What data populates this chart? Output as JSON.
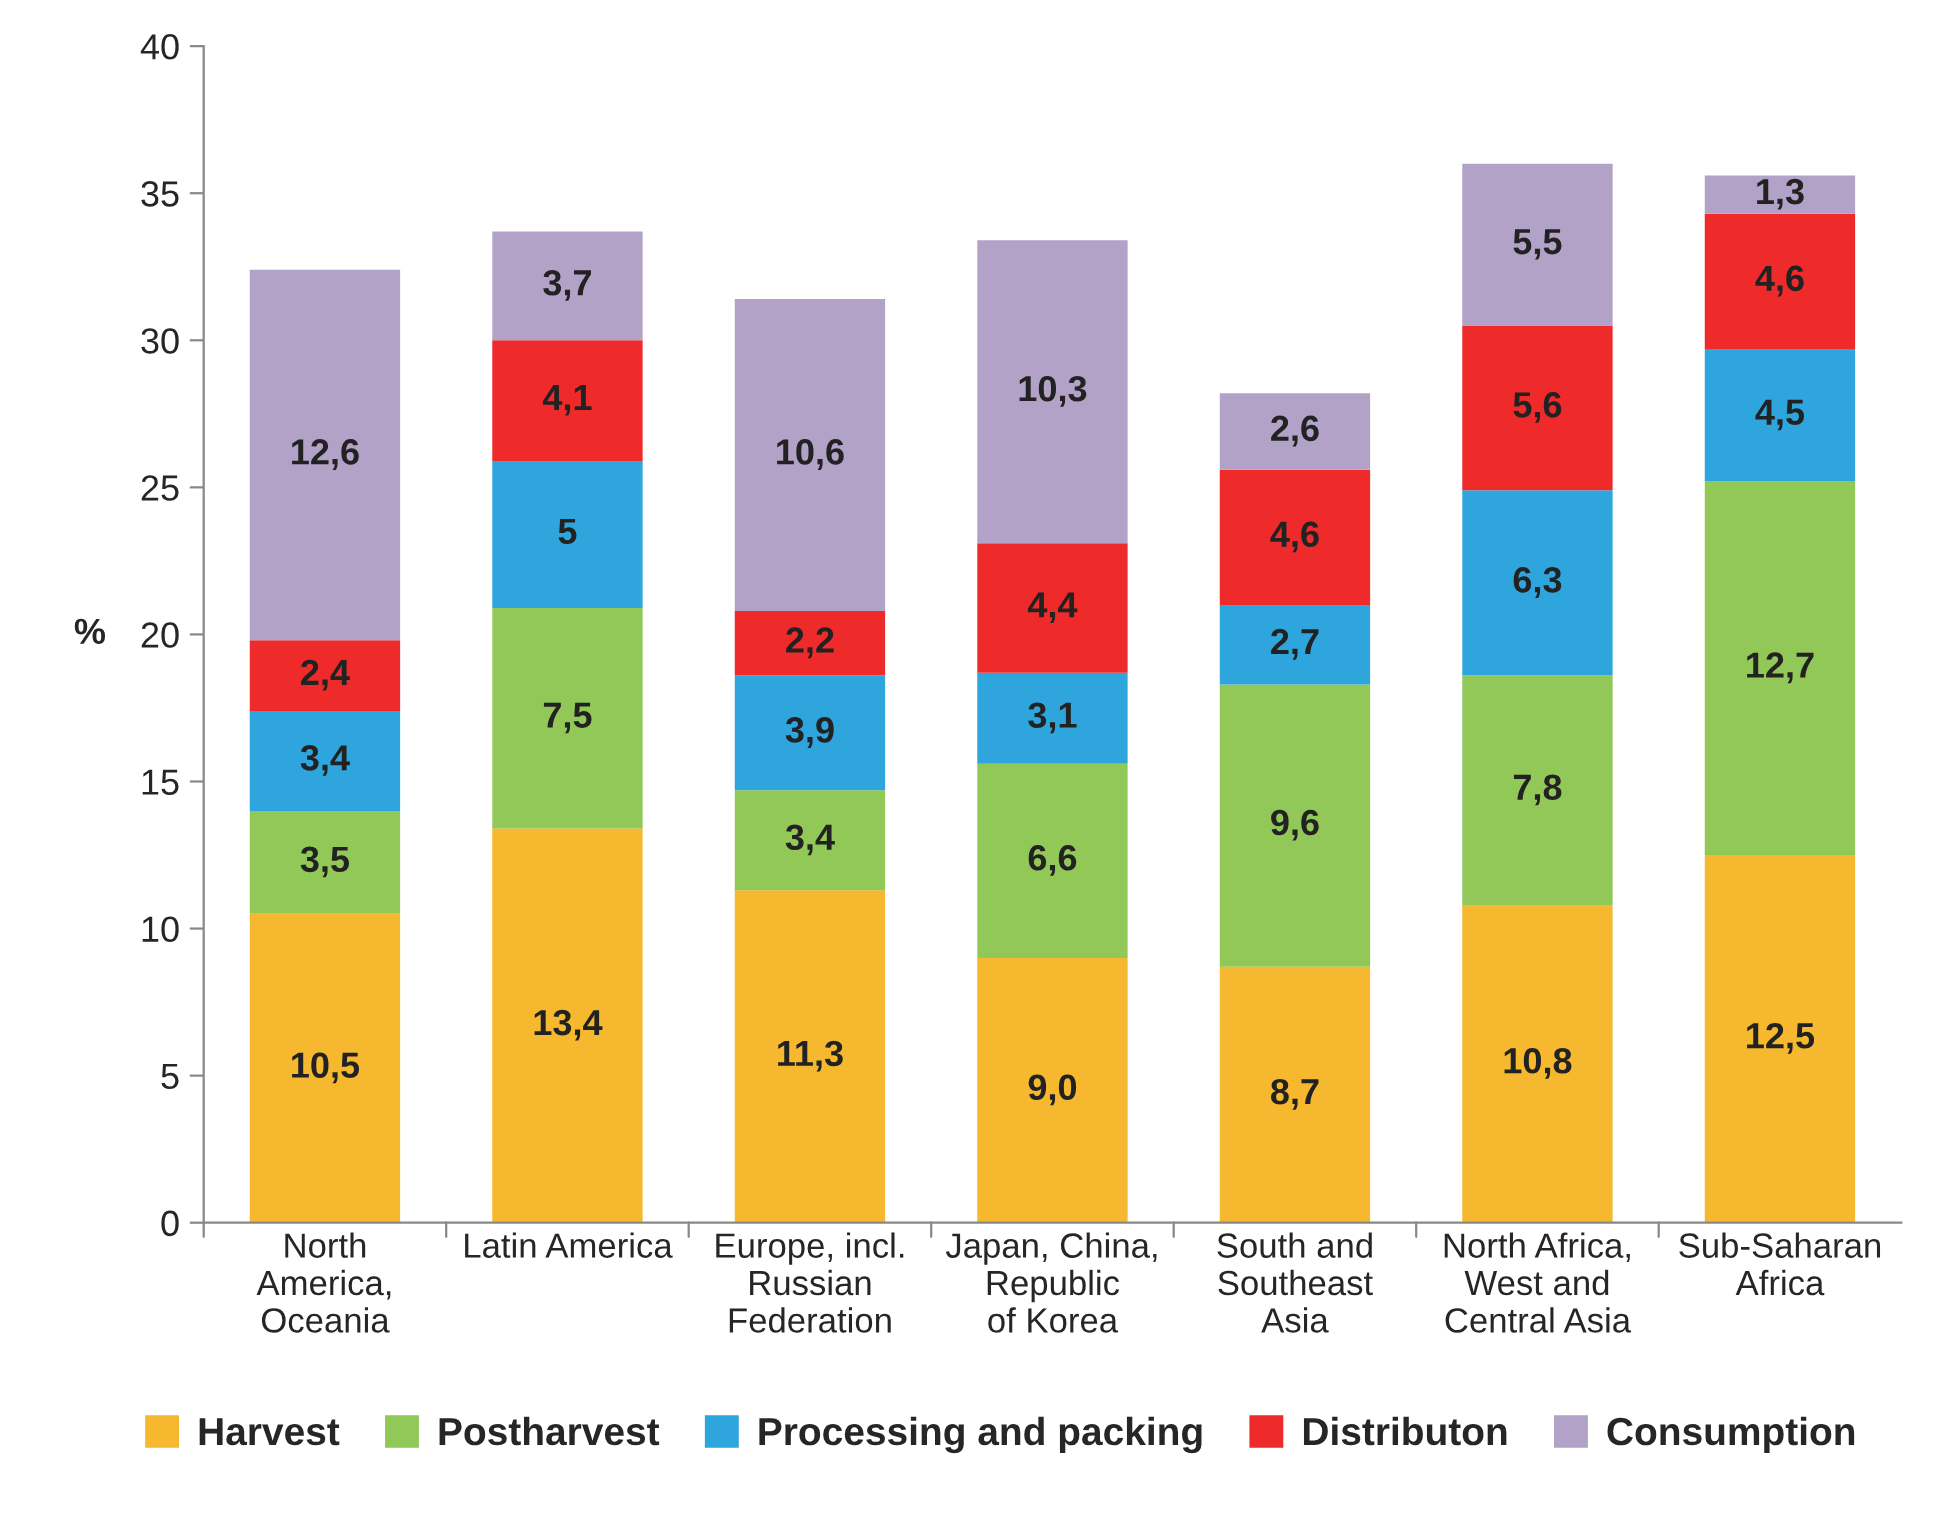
{
  "chart_data": {
    "type": "bar",
    "stacked": true,
    "ylabel": "%",
    "categories": [
      "North\nAmerica,\nOceania",
      "Latin America",
      "Europe, incl.\nRussian\nFederation",
      "Japan, China,\nRepublic\nof Korea",
      "South and\nSoutheast\nAsia",
      "North Africa,\nWest and\nCentral Asia",
      "Sub-Saharan\nAfrica"
    ],
    "series": [
      {
        "name": "Harvest",
        "color": "#f5b82e",
        "values": [
          10.5,
          13.4,
          11.3,
          9.0,
          8.7,
          10.8,
          12.5
        ],
        "value_labels": [
          "10,5",
          "13,4",
          "11,3",
          "9,0",
          "8,7",
          "10,8",
          "12,5"
        ]
      },
      {
        "name": "Postharvest",
        "color": "#92c857",
        "values": [
          3.5,
          7.5,
          3.4,
          6.6,
          9.6,
          7.8,
          12.7
        ],
        "value_labels": [
          "3,5",
          "7,5",
          "3,4",
          "6,6",
          "9,6",
          "7,8",
          "12,7"
        ]
      },
      {
        "name": "Processing and packing",
        "color": "#2ea6dd",
        "values": [
          3.4,
          5,
          3.9,
          3.1,
          2.7,
          6.3,
          4.5
        ],
        "value_labels": [
          "3,4",
          "5",
          "3,9",
          "3,1",
          "2,7",
          "6,3",
          "4,5"
        ]
      },
      {
        "name": "Distributon",
        "color": "#ee2a2a",
        "values": [
          2.4,
          4.1,
          2.2,
          4.4,
          4.6,
          5.6,
          4.6
        ],
        "value_labels": [
          "2,4",
          "4,1",
          "2,2",
          "4,4",
          "4,6",
          "5,6",
          "4,6"
        ]
      },
      {
        "name": "Consumption",
        "color": "#b3a2c7",
        "values": [
          12.6,
          3.7,
          10.6,
          10.3,
          2.6,
          5.5,
          1.3
        ],
        "value_labels": [
          "12,6",
          "3,7",
          "10,6",
          "10,3",
          "2,6",
          "5,5",
          "1,3"
        ]
      }
    ],
    "ylim": [
      0,
      40
    ],
    "yticks": [
      0,
      5,
      10,
      15,
      20,
      25,
      30,
      35,
      40
    ],
    "grid": false,
    "legend": "bottom"
  }
}
